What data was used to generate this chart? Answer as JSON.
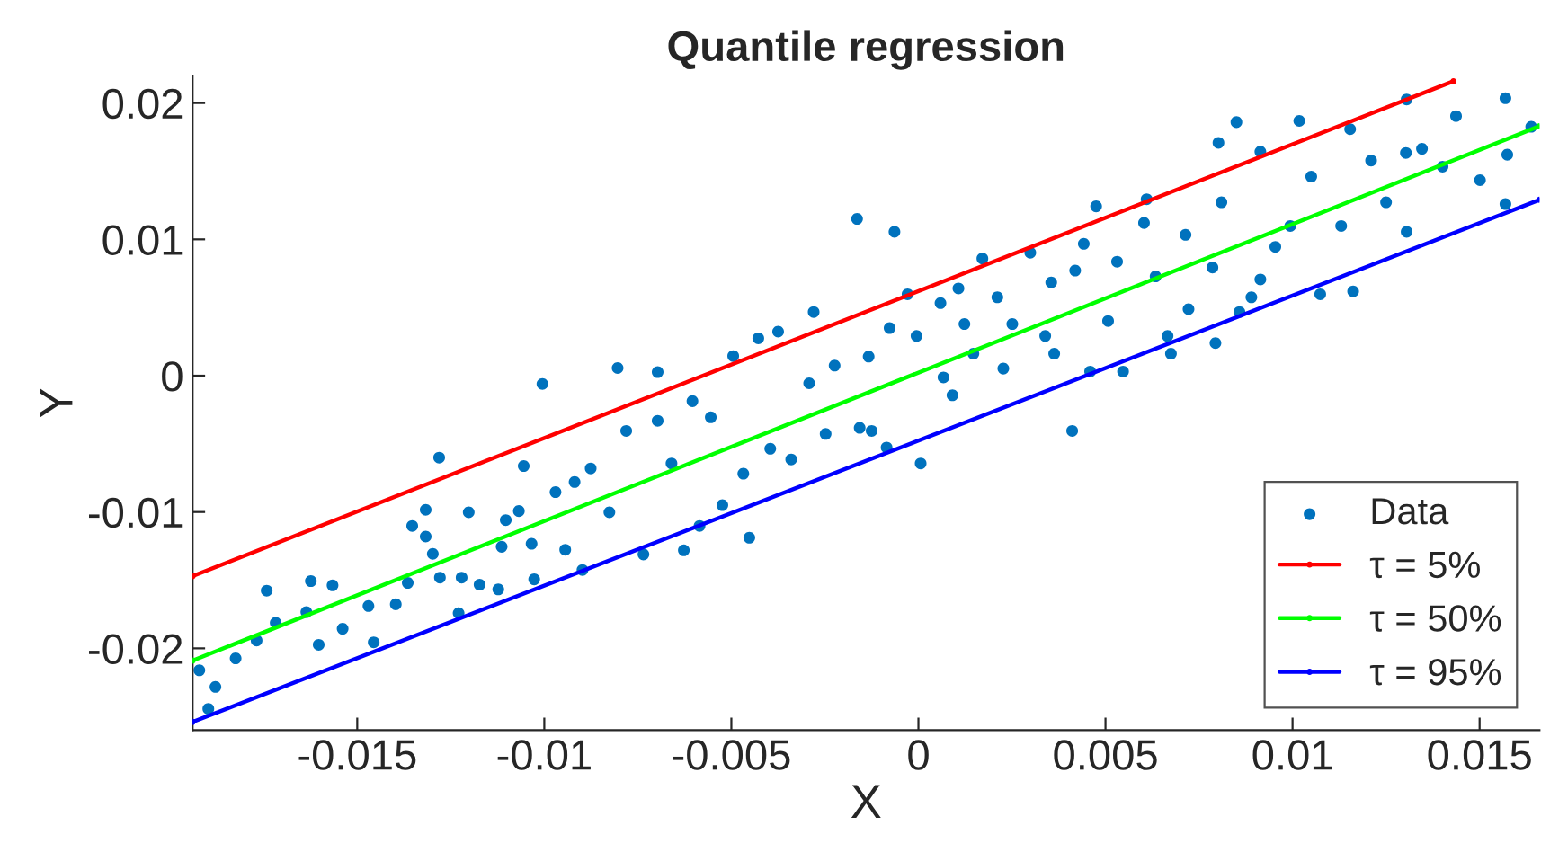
{
  "chart_data": {
    "type": "scatter",
    "title": "Quantile regression",
    "xlabel": "X",
    "ylabel": "Y",
    "xlim": [
      -0.0194,
      0.0166
    ],
    "ylim": [
      -0.026,
      0.022
    ],
    "xticks": [
      -0.015,
      -0.01,
      -0.005,
      0,
      0.005,
      0.01,
      0.015
    ],
    "yticks": [
      -0.02,
      -0.01,
      0,
      0.01,
      0.02
    ],
    "grid": false,
    "legend": "bottom right",
    "marker": "circle",
    "series": [
      {
        "name": "Data",
        "color": "#0072bd",
        "x": [
          -0.01922,
          -0.01879,
          -0.01898,
          -0.01825,
          -0.01769,
          -0.01742,
          -0.01718,
          -0.01636,
          -0.01624,
          -0.01603,
          -0.01566,
          -0.01539,
          -0.0147,
          -0.01456,
          -0.01397,
          -0.01365,
          -0.01353,
          -0.01317,
          -0.01317,
          -0.01298,
          -0.01281,
          -0.01279,
          -0.01229,
          -0.01221,
          -0.01202,
          -0.01173,
          -0.01123,
          -0.01114,
          -0.01103,
          -0.01068,
          -0.01055,
          -0.01034,
          -0.01027,
          -0.01005,
          -0.0097,
          -0.00944,
          -0.00919,
          -0.00898,
          -0.00876,
          -0.00826,
          -0.00804,
          -0.00781,
          -0.00735,
          -0.00697,
          -0.00697,
          -0.0066,
          -0.00627,
          -0.00604,
          -0.00585,
          -0.00555,
          -0.00524,
          -0.00495,
          -0.00468,
          -0.00452,
          -0.00428,
          -0.00396,
          -0.00375,
          -0.0034,
          -0.00292,
          -0.0028,
          -0.00248,
          -0.00224,
          -0.00164,
          -0.00157,
          -0.00064,
          -0.00077,
          -0.00133,
          -0.00125,
          -0.00085,
          6e-05,
          -0.00029,
          -5e-05,
          0.00059,
          0.00067,
          0.00091,
          0.00107,
          0.00123,
          0.00147,
          0.00171,
          0.00211,
          0.00227,
          0.00251,
          0.00299,
          0.00339,
          0.00355,
          0.00363,
          0.00411,
          0.00419,
          0.00442,
          0.00459,
          0.00475,
          0.00507,
          0.00531,
          0.00547,
          0.00603,
          0.0061,
          0.00634,
          0.00666,
          0.00675,
          0.00714,
          0.00722,
          0.00786,
          0.00794,
          0.00802,
          0.0081,
          0.0085,
          0.00858,
          0.0089,
          0.00914,
          0.00914,
          0.00954,
          0.00994,
          0.01018,
          0.0105,
          0.01074,
          0.0113,
          0.01154,
          0.01162,
          0.0121,
          0.0125,
          0.01305,
          0.01303,
          0.01305,
          0.01346,
          0.01401,
          0.01437,
          0.01501,
          0.01569,
          0.01574,
          0.01569,
          0.01638
        ],
        "values": [
          -0.02161,
          -0.02283,
          -0.02444,
          -0.02074,
          -0.01943,
          -0.01577,
          -0.01813,
          -0.01734,
          -0.01507,
          -0.01974,
          -0.01538,
          -0.01856,
          -0.0169,
          -0.01956,
          -0.01677,
          -0.0152,
          -0.01102,
          -0.00984,
          -0.0118,
          -0.01307,
          -0.00601,
          -0.01481,
          -0.01742,
          -0.01481,
          -0.01002,
          -0.01533,
          -0.01568,
          -0.01255,
          -0.01059,
          -0.00993,
          -0.00663,
          -0.01233,
          -0.01494,
          -0.00061,
          -0.00854,
          -0.01277,
          -0.0078,
          -0.01425,
          -0.0068,
          -0.01002,
          0.00056,
          -0.00405,
          -0.01311,
          0.00026,
          -0.00331,
          -0.00644,
          -0.01281,
          -0.00187,
          -0.01102,
          -0.00305,
          -0.0095,
          0.00144,
          -0.00719,
          -0.01189,
          0.00274,
          -0.00536,
          0.00323,
          -0.00614,
          -0.00056,
          0.00467,
          -0.00427,
          0.00074,
          0.0115,
          -0.00383,
          0.01055,
          0.00349,
          0.0014,
          -0.00405,
          -0.00527,
          -0.00644,
          0.00597,
          0.00291,
          0.00532,
          -0.00013,
          -0.00144,
          0.0064,
          0.00379,
          0.00161,
          0.00859,
          0.00575,
          0.00052,
          0.00379,
          0.00902,
          0.00291,
          0.00684,
          0.00161,
          -0.00405,
          0.00771,
          0.00967,
          0.0003,
          0.01242,
          0.00401,
          0.00836,
          0.0003,
          0.0112,
          0.01294,
          0.00728,
          0.00291,
          0.00161,
          0.01033,
          0.00488,
          0.00793,
          0.00239,
          0.01708,
          0.01272,
          0.0186,
          0.00467,
          0.00575,
          0.01643,
          0.00706,
          0.00945,
          0.01098,
          0.01869,
          0.0146,
          0.00597,
          0.01098,
          0.01808,
          0.00618,
          0.01578,
          0.01272,
          0.01055,
          0.01634,
          0.02026,
          0.01664,
          0.01533,
          0.01904,
          0.01434,
          0.02035,
          0.01621,
          0.01259,
          0.01826
        ]
      },
      {
        "name": "τ = 5%",
        "type": "line",
        "color": "#ff0000",
        "x": [
          -0.0194,
          0.0143
        ],
        "values": [
          -0.0147,
          0.0216
        ]
      },
      {
        "name": "τ = 50%",
        "type": "line",
        "color": "#00ff00",
        "x": [
          -0.0194,
          0.0166
        ],
        "values": [
          -0.0209,
          0.0183
        ]
      },
      {
        "name": "τ = 95%",
        "type": "line",
        "color": "#0000ff",
        "x": [
          -0.0194,
          0.0166
        ],
        "values": [
          -0.0254,
          0.0129
        ]
      }
    ]
  }
}
